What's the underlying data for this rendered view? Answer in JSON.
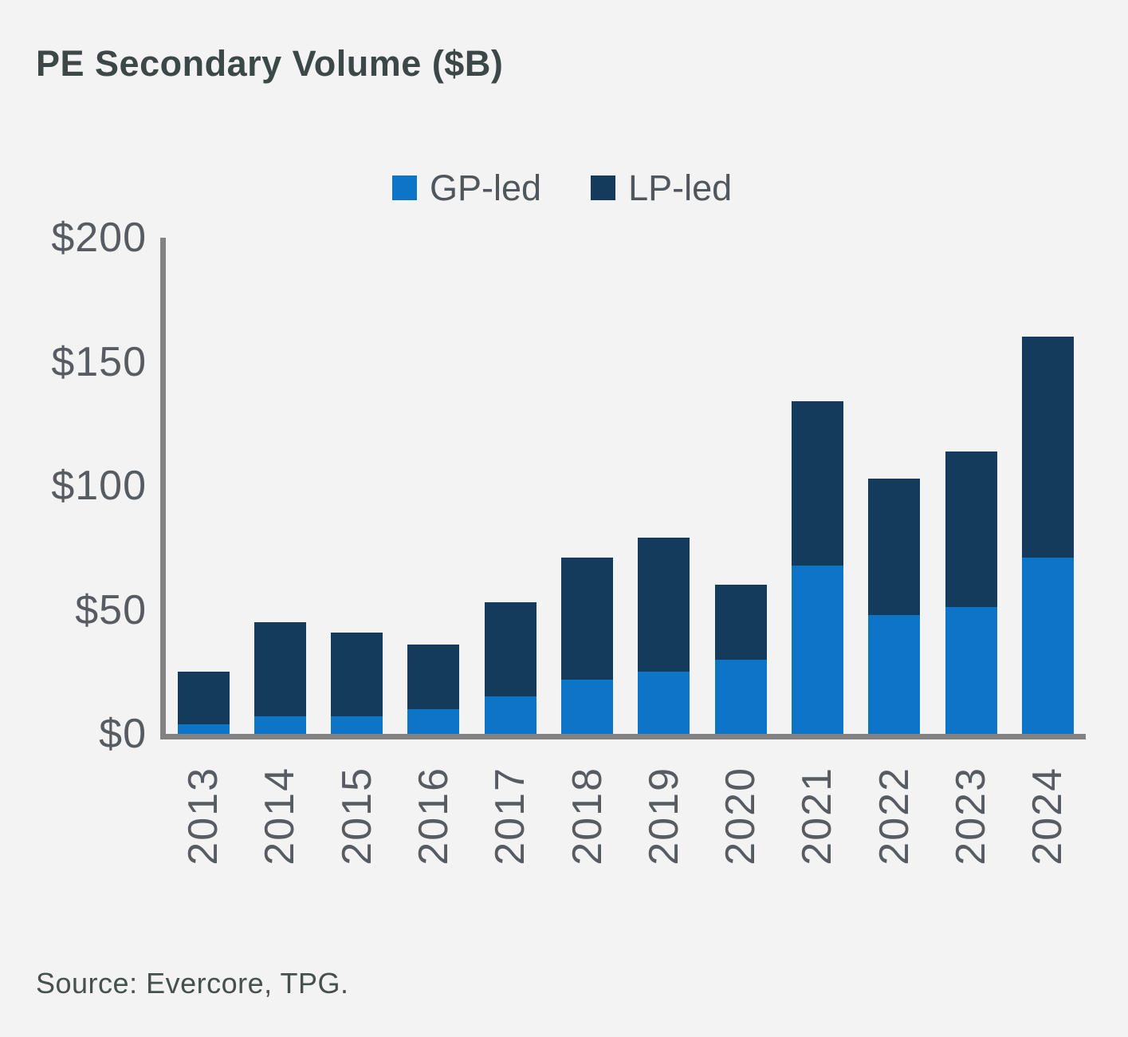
{
  "title": "PE Secondary Volume ($B)",
  "source_note": "Source: Evercore, TPG.",
  "legend": {
    "items": [
      {
        "label": "GP-led",
        "color": "#0e74c6"
      },
      {
        "label": "LP-led",
        "color": "#143a5c"
      }
    ]
  },
  "colors": {
    "background": "#f3f3f4",
    "title_text": "#3c4747",
    "legend_text": "#4f565c",
    "axis_text": "#565c62",
    "axis_line": "#828282",
    "source_text": "#46504f",
    "gp_led": "#0e74c6",
    "lp_led": "#143a5c"
  },
  "chart_data": {
    "type": "bar",
    "stacked": true,
    "title": "PE Secondary Volume ($B)",
    "categories": [
      "2013",
      "2014",
      "2015",
      "2016",
      "2017",
      "2018",
      "2019",
      "2020",
      "2021",
      "2022",
      "2023",
      "2024"
    ],
    "series": [
      {
        "name": "GP-led",
        "color": "#0e74c6",
        "values": [
          4,
          7,
          7,
          10,
          15,
          22,
          25,
          30,
          68,
          48,
          51,
          71
        ]
      },
      {
        "name": "LP-led",
        "color": "#143a5c",
        "values": [
          21,
          38,
          34,
          26,
          38,
          49,
          54,
          30,
          66,
          55,
          63,
          89
        ]
      }
    ],
    "totals": [
      25,
      45,
      41,
      36,
      53,
      71,
      79,
      60,
      134,
      103,
      114,
      160
    ],
    "xlabel": "",
    "ylabel": "",
    "y_axis": {
      "ylim": [
        0,
        200
      ],
      "ticks": [
        0,
        50,
        100,
        150,
        200
      ],
      "tick_labels": [
        "$0",
        "$50",
        "$100",
        "$150",
        "$200"
      ]
    },
    "x_tick_rotation_degrees": 90,
    "legend_position": "top-center",
    "grid": false
  }
}
